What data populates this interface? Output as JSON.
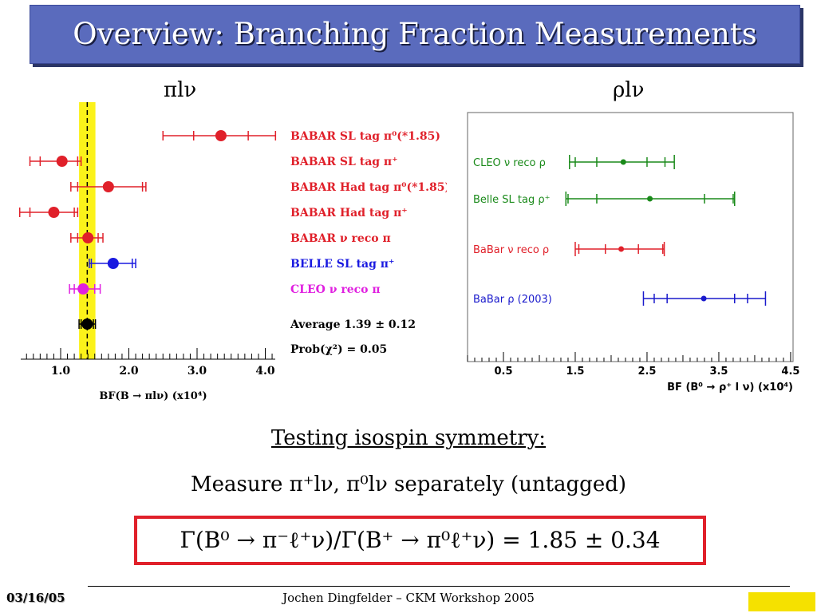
{
  "title": "Overview: Branching Fraction Measurements",
  "left_heading": "πlν",
  "right_heading": "ρlν",
  "isospin_title": "Testing isospin symmetry:",
  "isospin_line": "Measure π⁺lν, π⁰lν separately (untagged)",
  "formula": "Γ(B⁰ → π⁻ℓ⁺ν)/Γ(B⁺ → π⁰ℓ⁺ν) = 1.85 ± 0.34",
  "footer": {
    "date": "03/16/05",
    "center": "Jochen Dingfelder –  CKM Workshop 2005"
  },
  "chart_data": [
    {
      "type": "scatter",
      "xlabel": "BF(B → πlν) (x10⁴)",
      "xlim": [
        0.4,
        4.2
      ],
      "xticks": [
        "1.0",
        "2.0",
        "3.0",
        "4.0"
      ],
      "average_value": 1.39,
      "average_band": [
        1.27,
        1.51
      ],
      "points": [
        {
          "label": "BABAR SL tag π⁰(*1.85)",
          "color": "#e0202a",
          "value": 3.35,
          "stat_lo": 2.95,
          "stat_hi": 3.75,
          "tot_lo": 2.5,
          "tot_hi": 4.15
        },
        {
          "label": "BABAR SL tag π⁺",
          "color": "#e0202a",
          "value": 1.02,
          "stat_lo": 0.7,
          "stat_hi": 1.25,
          "tot_lo": 0.55,
          "tot_hi": 1.3
        },
        {
          "label": "BABAR Had tag π⁰(*1.85)",
          "color": "#e0202a",
          "value": 1.7,
          "stat_lo": 1.25,
          "stat_hi": 2.2,
          "tot_lo": 1.15,
          "tot_hi": 2.25
        },
        {
          "label": "BABAR Had tag π⁺",
          "color": "#e0202a",
          "value": 0.9,
          "stat_lo": 0.55,
          "stat_hi": 1.2,
          "tot_lo": 0.4,
          "tot_hi": 1.25
        },
        {
          "label": "BABAR ν reco π",
          "color": "#e0202a",
          "value": 1.4,
          "stat_lo": 1.25,
          "stat_hi": 1.55,
          "tot_lo": 1.15,
          "tot_hi": 1.62
        },
        {
          "label": "BELLE SL tag π⁺",
          "color": "#1a1ae0",
          "value": 1.77,
          "stat_lo": 1.45,
          "stat_hi": 2.05,
          "tot_lo": 1.42,
          "tot_hi": 2.1
        },
        {
          "label": "CLEO ν reco π",
          "color": "#e020e0",
          "value": 1.33,
          "stat_lo": 1.2,
          "stat_hi": 1.5,
          "tot_lo": 1.13,
          "tot_hi": 1.58
        },
        {
          "label": "Average 1.39 ± 0.12",
          "color": "#000000",
          "value": 1.39,
          "stat_lo": 1.3,
          "stat_hi": 1.48,
          "tot_lo": 1.27,
          "tot_hi": 1.51
        }
      ],
      "annotation": "Prob(χ²) = 0.05"
    },
    {
      "type": "scatter",
      "xlabel": "BF (B⁰ → ρ⁺ l ν)  (x10⁴)",
      "xlim": [
        0,
        4.5
      ],
      "xticks": [
        "0.5",
        "1.5",
        "2.5",
        "3.5",
        "4.5"
      ],
      "points": [
        {
          "label": "CLEO ν reco ρ",
          "color": "#1a8a1a",
          "value": 2.17,
          "stat_lo": 1.8,
          "stat_hi": 2.5,
          "mid_lo": 1.5,
          "mid_hi": 2.75,
          "tot_lo": 1.42,
          "tot_hi": 2.88
        },
        {
          "label": "Belle  SL tag ρ⁺",
          "color": "#1a8a1a",
          "value": 2.54,
          "stat_lo": 1.8,
          "stat_hi": 3.3,
          "mid_lo": 1.4,
          "mid_hi": 3.7,
          "tot_lo": 1.37,
          "tot_hi": 3.72
        },
        {
          "label": "BaBar ν reco ρ",
          "color": "#e0202a",
          "value": 2.14,
          "stat_lo": 1.92,
          "stat_hi": 2.38,
          "mid_lo": 1.55,
          "mid_hi": 2.72,
          "tot_lo": 1.5,
          "tot_hi": 2.74
        },
        {
          "label": "BaBar ρ (2003)",
          "color": "#1a1acc",
          "value": 3.29,
          "stat_lo": 2.78,
          "stat_hi": 3.72,
          "mid_lo": 2.6,
          "mid_hi": 3.9,
          "tot_lo": 2.45,
          "tot_hi": 4.15
        }
      ]
    }
  ]
}
